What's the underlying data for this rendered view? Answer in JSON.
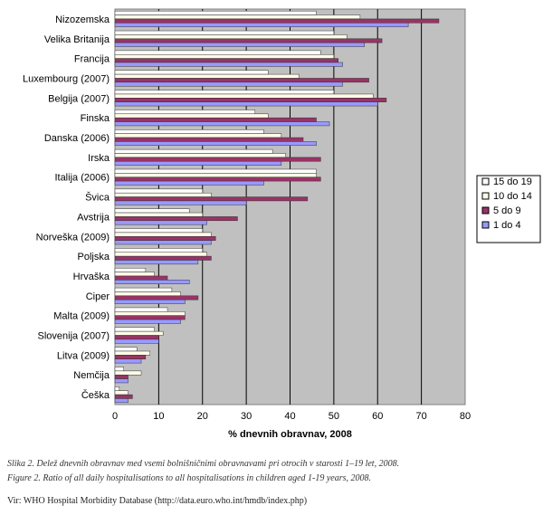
{
  "chart_data": {
    "type": "bar",
    "orientation": "horizontal",
    "categories": [
      "Nizozemska",
      "Velika Britanija",
      "Francija",
      "Luxembourg (2007)",
      "Belgija (2007)",
      "Finska",
      "Danska (2006)",
      "Irska",
      "Italija (2006)",
      "Švica",
      "Avstrija",
      "Norveška (2009)",
      "Poljska",
      "Hrvaška",
      "Ciper",
      "Malta (2009)",
      "Slovenija (2007)",
      "Litva (2009)",
      "Nemčija",
      "Češka"
    ],
    "series": [
      {
        "name": "15 do 19",
        "color": "#ffffff",
        "values": [
          46,
          50,
          47,
          35,
          50,
          32,
          34,
          36,
          46,
          20,
          17,
          20,
          20,
          7,
          13,
          12,
          9,
          5,
          2,
          1
        ]
      },
      {
        "name": "10 do 14",
        "color": "#fffce8",
        "values": [
          56,
          53,
          50,
          42,
          59,
          35,
          38,
          39,
          46,
          22,
          20,
          22,
          21,
          9,
          15,
          16,
          11,
          8,
          6,
          3
        ]
      },
      {
        "name": "5 do 9",
        "color": "#993366",
        "values": [
          74,
          61,
          51,
          58,
          62,
          46,
          43,
          47,
          47,
          44,
          28,
          23,
          22,
          12,
          19,
          16,
          10,
          7,
          3,
          4
        ]
      },
      {
        "name": "1 do 4",
        "color": "#9999ff",
        "values": [
          67,
          57,
          52,
          52,
          60,
          49,
          46,
          38,
          34,
          30,
          21,
          22,
          19,
          17,
          16,
          15,
          10,
          6,
          3,
          3
        ]
      }
    ],
    "xlabel": "% dnevnih obravnav, 2008",
    "xlim": [
      0,
      80
    ],
    "xticks": [
      0,
      10,
      20,
      30,
      40,
      50,
      60,
      70,
      80
    ],
    "grid": true,
    "plot_background": "#c0c0c0",
    "legend": "right"
  },
  "caption": {
    "line1": "Slika 2. Delež dnevnih obravnav med vsemi bolnišničnimi obravnavami pri otrocih v starosti 1–19 let, 2008.",
    "line2": "Figure 2. Ratio of all daily hospitalisations to all hospitalisations in children aged 1-19 years, 2008."
  },
  "source": "Vir: WHO Hospital Morbidity Database (http://data.euro.who.int/hmdb/index.php)"
}
